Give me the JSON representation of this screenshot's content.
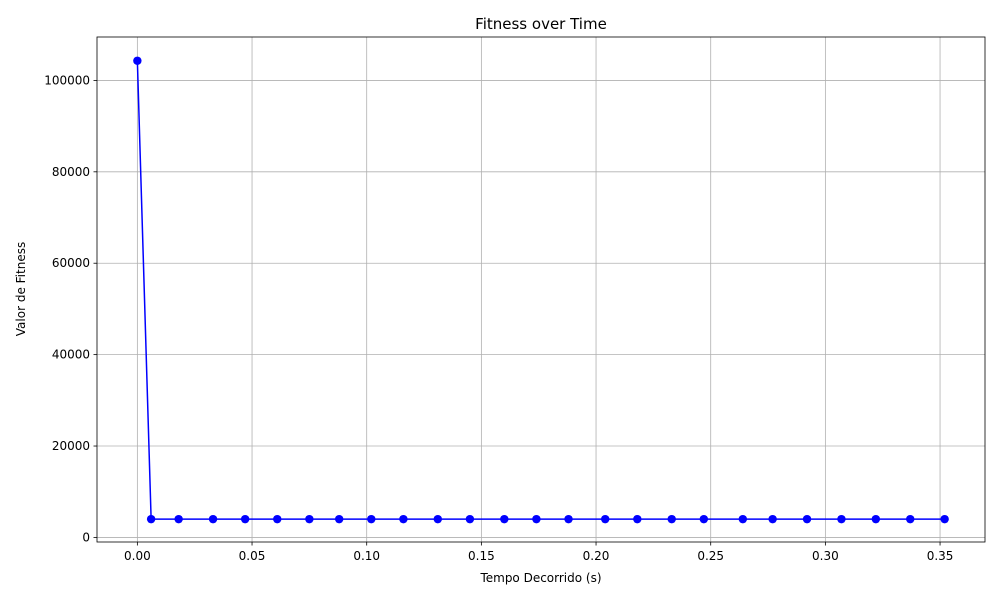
{
  "chart_data": {
    "type": "line",
    "title": "Fitness over Time",
    "xlabel": "Tempo Decorrido (s)",
    "ylabel": "Valor de Fitness",
    "xlim": [
      -0.0176,
      0.3696
    ],
    "ylim": [
      -1000,
      109500
    ],
    "xticks": [
      0.0,
      0.05,
      0.1,
      0.15,
      0.2,
      0.25,
      0.3,
      0.35
    ],
    "xtick_labels": [
      "0.00",
      "0.05",
      "0.10",
      "0.15",
      "0.20",
      "0.25",
      "0.30",
      "0.35"
    ],
    "yticks": [
      0,
      20000,
      40000,
      60000,
      80000,
      100000
    ],
    "ytick_labels": [
      "0",
      "20000",
      "40000",
      "60000",
      "80000",
      "100000"
    ],
    "grid": true,
    "series": [
      {
        "color": "#0000ff",
        "marker": "circle",
        "x": [
          0.0,
          0.006,
          0.018,
          0.033,
          0.047,
          0.061,
          0.075,
          0.088,
          0.102,
          0.116,
          0.131,
          0.145,
          0.16,
          0.174,
          0.188,
          0.204,
          0.218,
          0.233,
          0.247,
          0.264,
          0.277,
          0.292,
          0.307,
          0.322,
          0.337,
          0.352
        ],
        "y": [
          104300,
          4000,
          4000,
          4000,
          4000,
          4000,
          4000,
          4000,
          4000,
          4000,
          4000,
          4000,
          4000,
          4000,
          4000,
          4000,
          4000,
          4000,
          4000,
          4000,
          4000,
          4000,
          4000,
          4000,
          4000,
          4000
        ]
      }
    ]
  }
}
